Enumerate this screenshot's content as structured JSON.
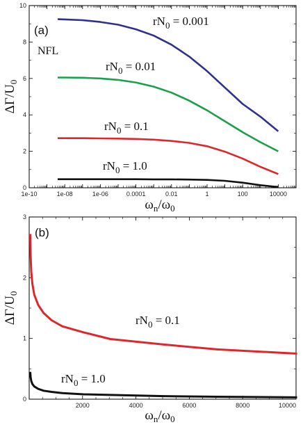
{
  "chart_data": [
    {
      "type": "line",
      "panel_label": "(a)",
      "note": "NFL",
      "xlabel": "ωn/ω0",
      "ylabel": "ΔΓ/U0",
      "xscale": "log",
      "xlim": [
        1e-10,
        100000
      ],
      "ylim": [
        0,
        10
      ],
      "x_ticks": [
        "1e-10",
        "1e-08",
        "1e-06",
        "0.0001",
        "0.01",
        "1",
        "100",
        "10000"
      ],
      "y_ticks": [
        "0",
        "2",
        "4",
        "6",
        "8",
        "10"
      ],
      "series": [
        {
          "name": "rN0 = 0.001",
          "label_sub_prefix": "rN",
          "label_sub": "0",
          "label_rest": " = 0.001",
          "color": "#2e3192",
          "x": [
            4e-09,
            1e-08,
            1e-07,
            1e-06,
            1e-05,
            0.0001,
            0.001,
            0.01,
            0.1,
            1,
            10,
            100,
            1000,
            10000
          ],
          "y": [
            9.25,
            9.24,
            9.2,
            9.1,
            8.95,
            8.7,
            8.35,
            7.85,
            7.2,
            6.4,
            5.5,
            4.6,
            3.9,
            3.1
          ]
        },
        {
          "name": "rN0 = 0.01",
          "label_sub_prefix": "rN",
          "label_sub": "0",
          "label_rest": " = 0.01",
          "color": "#1aa04a",
          "x": [
            4e-09,
            1e-08,
            1e-07,
            1e-06,
            1e-05,
            0.0001,
            0.001,
            0.01,
            0.1,
            1,
            10,
            100,
            1000,
            10000
          ],
          "y": [
            6.05,
            6.05,
            6.04,
            6.0,
            5.92,
            5.78,
            5.55,
            5.22,
            4.78,
            4.25,
            3.65,
            3.05,
            2.5,
            2.0
          ]
        },
        {
          "name": "rN0 = 0.1",
          "label_sub_prefix": "rN",
          "label_sub": "0",
          "label_rest": " = 0.1",
          "color": "#e0262a",
          "x": [
            4e-09,
            1e-08,
            1e-07,
            1e-06,
            1e-05,
            0.0001,
            0.001,
            0.01,
            0.1,
            1,
            10,
            100,
            1000,
            10000
          ],
          "y": [
            2.72,
            2.72,
            2.72,
            2.71,
            2.7,
            2.68,
            2.64,
            2.57,
            2.46,
            2.28,
            1.98,
            1.6,
            1.15,
            0.75
          ]
        },
        {
          "name": "rN0 = 1.0",
          "label_sub_prefix": "rN",
          "label_sub": "0",
          "label_rest": " = 1.0",
          "color": "#111111",
          "x": [
            4e-09,
            1e-08,
            1e-07,
            1e-06,
            1e-05,
            0.0001,
            0.001,
            0.01,
            0.1,
            1,
            10,
            100,
            1000,
            10000
          ],
          "y": [
            0.47,
            0.47,
            0.47,
            0.47,
            0.47,
            0.47,
            0.46,
            0.46,
            0.45,
            0.43,
            0.38,
            0.28,
            0.14,
            0.04
          ]
        }
      ]
    },
    {
      "type": "line",
      "panel_label": "(b)",
      "xlabel": "ωn/ω0",
      "ylabel": "ΔΓ/U0",
      "xscale": "linear",
      "xlim": [
        0,
        10000
      ],
      "ylim": [
        0,
        3
      ],
      "x_ticks": [
        "2000",
        "4000",
        "6000",
        "8000",
        "10000"
      ],
      "y_ticks": [
        "0",
        "1",
        "2",
        "3"
      ],
      "series": [
        {
          "name": "rN0 = 0.1",
          "label_sub_prefix": "rN",
          "label_sub": "0",
          "label_rest": " = 0.1",
          "color": "#e0262a",
          "x": [
            0,
            15,
            40,
            80,
            150,
            300,
            500,
            800,
            1200,
            2000,
            3000,
            5000,
            7000,
            10000
          ],
          "y": [
            2.72,
            2.35,
            2.1,
            1.9,
            1.72,
            1.55,
            1.42,
            1.3,
            1.2,
            1.1,
            0.99,
            0.9,
            0.82,
            0.75
          ]
        },
        {
          "name": "rN0 = 1.0",
          "label_sub_prefix": "rN",
          "label_sub": "0",
          "label_rest": " = 1.0",
          "color": "#111111",
          "x": [
            0,
            15,
            40,
            80,
            150,
            300,
            500,
            800,
            1200,
            2000,
            3000,
            5000,
            7000,
            10000
          ],
          "y": [
            0.45,
            0.36,
            0.3,
            0.25,
            0.21,
            0.17,
            0.14,
            0.12,
            0.1,
            0.08,
            0.07,
            0.05,
            0.04,
            0.03
          ]
        }
      ]
    }
  ]
}
